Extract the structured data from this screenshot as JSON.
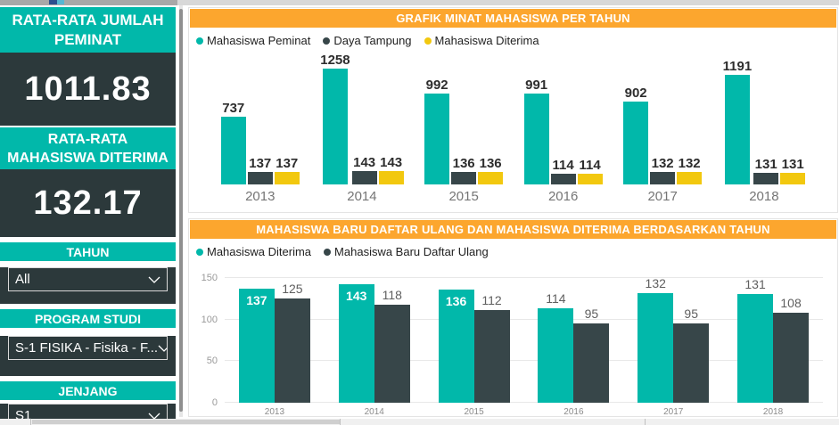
{
  "sidebar": {
    "cards": [
      {
        "title": "RATA-RATA JUMLAH PEMINAT",
        "value": "1011.83"
      },
      {
        "title": "RATA-RATA MAHASISWA DITERIMA",
        "value": "132.17"
      }
    ],
    "filters": [
      {
        "label": "TAHUN",
        "value": "All"
      },
      {
        "label": "PROGRAM STUDI",
        "value": "S-1 FISIKA - Fisika - F..."
      },
      {
        "label": "JENJANG",
        "value": "S1"
      }
    ]
  },
  "colors": {
    "teal": "#01B8AA",
    "dark": "#374649",
    "yellow": "#F2C80F",
    "orange": "#FCA62E",
    "sidebar_dark": "#2C393B"
  },
  "chart_data": [
    {
      "type": "bar",
      "title": "GRAFIK MINAT MAHASISWA PER TAHUN",
      "categories": [
        "2013",
        "2014",
        "2015",
        "2016",
        "2017",
        "2018"
      ],
      "series": [
        {
          "name": "Mahasiswa Peminat",
          "color": "#01B8AA",
          "values": [
            737,
            1258,
            992,
            991,
            902,
            1191
          ]
        },
        {
          "name": "Daya Tampung",
          "color": "#374649",
          "values": [
            137,
            143,
            136,
            114,
            132,
            131
          ]
        },
        {
          "name": "Mahasiswa Diterima",
          "color": "#F2C80F",
          "values": [
            137,
            143,
            136,
            114,
            132,
            131
          ]
        }
      ],
      "ylim": [
        0,
        1258
      ],
      "grid": false,
      "legend_position": "top-left",
      "value_labels": "above"
    },
    {
      "type": "bar",
      "title": "MAHASISWA BARU DAFTAR ULANG DAN MAHASISWA DITERIMA BERDASARKAN TAHUN",
      "categories": [
        "2013",
        "2014",
        "2015",
        "2016",
        "2017",
        "2018"
      ],
      "series": [
        {
          "name": "Mahasiswa Diterima",
          "color": "#01B8AA",
          "values": [
            137,
            143,
            136,
            114,
            132,
            131
          ],
          "label_inside": [
            true,
            true,
            true,
            false,
            false,
            false
          ]
        },
        {
          "name": "Mahasiswa Baru Daftar Ulang",
          "color": "#374649",
          "values": [
            125,
            118,
            112,
            95,
            95,
            108
          ],
          "label_inside": [
            false,
            false,
            false,
            false,
            false,
            false
          ]
        }
      ],
      "ylim": [
        0,
        150
      ],
      "yticks": [
        0,
        50,
        100,
        150
      ],
      "grid": true,
      "legend_position": "top-left",
      "value_labels": "auto"
    }
  ]
}
